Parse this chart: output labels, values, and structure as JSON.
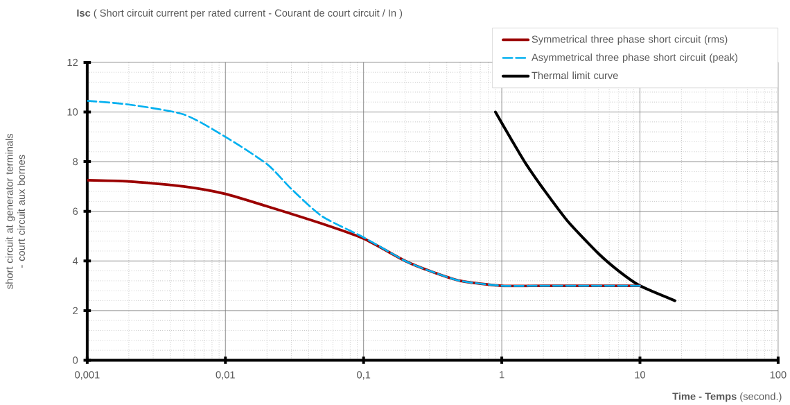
{
  "chart_data": {
    "type": "line",
    "title": "**Isc** ( Short circuit current per rated current - Courant de court circuit / In )",
    "xlabel": "**Time - Temps** (second.)",
    "ylabel": "short circuit at generator terminals - court circuit aux bornes",
    "log": "x",
    "xlim": [
      0.001,
      100
    ],
    "ylim": [
      0,
      12
    ],
    "xticks": [
      {
        "value": 0.001,
        "label": "0,001"
      },
      {
        "value": 0.01,
        "label": "0,01"
      },
      {
        "value": 0.1,
        "label": "0,1"
      },
      1,
      10,
      100
    ],
    "yticks": [
      0,
      2,
      4,
      6,
      8,
      10,
      12
    ],
    "grid": true,
    "legend": "top right",
    "series": [
      {
        "name": "Symmetrical three phase short circuit (rms)",
        "color": "#9b0000",
        "line_style": "solid",
        "x": [
          0.001,
          0.002,
          0.005,
          0.01,
          0.02,
          0.05,
          0.1,
          0.2,
          0.3,
          0.5,
          1,
          2,
          10
        ],
        "values": [
          7.25,
          7.2,
          7.0,
          6.7,
          6.2,
          5.5,
          4.9,
          4.0,
          3.6,
          3.2,
          3.0,
          3.0,
          3.0
        ]
      },
      {
        "name": "Asymmetrical three phase short circuit (peak)",
        "color": "#00b0f0",
        "line_style": "dashed",
        "x": [
          0.001,
          0.002,
          0.005,
          0.01,
          0.02,
          0.03,
          0.05,
          0.1,
          0.2,
          0.3,
          0.5,
          1,
          2,
          10
        ],
        "values": [
          10.45,
          10.3,
          9.9,
          9.0,
          7.9,
          6.9,
          5.8,
          4.95,
          4.0,
          3.6,
          3.2,
          3.0,
          3.0,
          3.0
        ]
      },
      {
        "name": "Thermal limit curve",
        "color": "#000000",
        "line_style": "solid",
        "x": [
          0.9,
          1.2,
          1.5,
          2,
          3,
          5,
          7,
          10,
          17.9
        ],
        "values": [
          10.0,
          8.8,
          7.9,
          6.9,
          5.6,
          4.3,
          3.6,
          3.0,
          2.4
        ]
      }
    ]
  }
}
